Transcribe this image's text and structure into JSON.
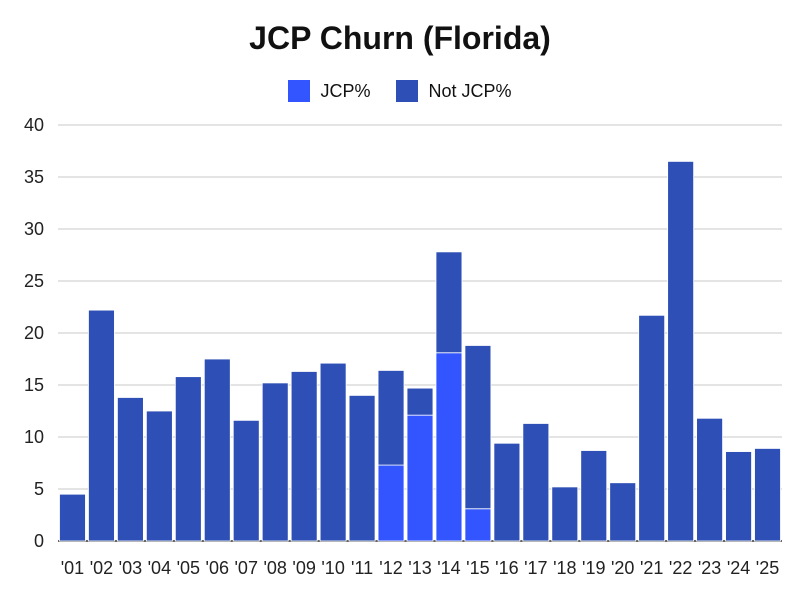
{
  "chart_data": {
    "type": "bar",
    "stacked": true,
    "title": "JCP Churn (Florida)",
    "xlabel": "",
    "ylabel": "",
    "ylim": [
      0,
      40
    ],
    "yticks": [
      0,
      5,
      10,
      15,
      20,
      25,
      30,
      35,
      40
    ],
    "grid": true,
    "legend_position": "top",
    "categories": [
      "'01",
      "'02",
      "'03",
      "'04",
      "'05",
      "'06",
      "'07",
      "'08",
      "'09",
      "'10",
      "'11",
      "'12",
      "'13",
      "'14",
      "'15",
      "'16",
      "'17",
      "'18",
      "'19",
      "'20",
      "'21",
      "'22",
      "'23",
      "'24",
      "'25"
    ],
    "series": [
      {
        "name": "JCP%",
        "color": "#3355ff",
        "values": [
          0,
          0,
          0,
          0,
          0,
          0,
          0,
          0,
          0,
          0,
          0,
          7.3,
          12.1,
          18.1,
          3.1,
          0,
          0,
          0,
          0,
          0,
          0,
          0,
          0,
          0,
          0
        ]
      },
      {
        "name": "Not JCP%",
        "color": "#2e4fb5",
        "values": [
          4.5,
          22.2,
          13.8,
          12.5,
          15.8,
          17.5,
          11.6,
          15.2,
          16.3,
          17.1,
          14.0,
          9.1,
          2.6,
          9.7,
          15.7,
          9.4,
          11.3,
          5.2,
          8.7,
          5.6,
          21.7,
          36.5,
          11.8,
          8.6,
          8.9
        ]
      }
    ]
  }
}
